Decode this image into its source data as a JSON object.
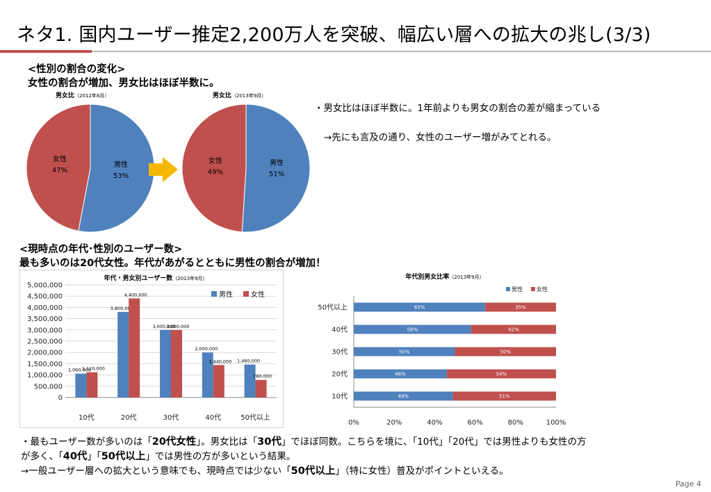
{
  "page": {
    "title": "ネタ1. 国内ユーザー推定2,200万人を突破、幅広い層への拡大の兆し(3/3)",
    "page_number": "Page 4",
    "colors": {
      "male": "#4f81bd",
      "female": "#c0504d",
      "arrow": "#f5b800",
      "title_rule": "#c0504d"
    }
  },
  "section1": {
    "heading": "<性別の割合の変化>",
    "subheading": "女性の割合が増加、男女比はほぼ半数に。",
    "bullet1": "・男女比はほぼ半数に。1年前よりも男女の割合の差が縮まっている",
    "bullet2": "→先にも言及の通り、女性のユーザー増がみてとれる。",
    "arrow_icon": "right-arrow-icon"
  },
  "section2": {
    "heading": "<現時点の年代･性別のユーザー数>",
    "subheading": "最も多いのは20代女性。年代があがるとともに男性の割合が増加！"
  },
  "footer": {
    "line1_a": "・最もユーザー数が多いのは「",
    "line1_b": "20代女性",
    "line1_c": "」。男女比は「",
    "line1_d": "30代",
    "line1_e": "」でほぼ同数。こちらを境に、「10代」「20代」では男性よりも女性の方",
    "line2_a": "が多く、「",
    "line2_b": "40代",
    "line2_c": "」「",
    "line2_d": "50代以上",
    "line2_e": "」では男性の方が多いという結果。",
    "line3_a": "→一般ユーザー層への拡大という意味でも、現時点では少ない「",
    "line3_b": "50代以上",
    "line3_c": "」（特に女性）普及がポイントといえる。"
  },
  "chart_data": [
    {
      "type": "pie",
      "title": "男女比",
      "subtitle": "（2012年8月）",
      "slices": [
        {
          "name": "男性",
          "value": 53,
          "label": "53%",
          "color": "#4f81bd"
        },
        {
          "name": "女性",
          "value": 47,
          "label": "47%",
          "color": "#c0504d"
        }
      ]
    },
    {
      "type": "pie",
      "title": "男女比",
      "subtitle": "（2013年9月）",
      "slices": [
        {
          "name": "男性",
          "value": 51,
          "label": "51%",
          "color": "#4f81bd"
        },
        {
          "name": "女性",
          "value": 49,
          "label": "49%",
          "color": "#c0504d"
        }
      ]
    },
    {
      "type": "bar",
      "title": "年代・男女別ユーザー数",
      "subtitle": "（2013年9月）",
      "categories": [
        "10代",
        "20代",
        "30代",
        "40代",
        "50代以上"
      ],
      "series": [
        {
          "name": "男性",
          "color": "#4f81bd",
          "values": [
            1060000,
            3800000,
            3000000,
            2000000,
            1460000
          ],
          "labels": [
            "1,060,000",
            "3,800,000",
            "3,000,000",
            "2,000,000",
            "1,460,000"
          ]
        },
        {
          "name": "女性",
          "color": "#c0504d",
          "values": [
            1120000,
            4400000,
            3000000,
            1440000,
            780000
          ],
          "labels": [
            "1,120,000",
            "4,400,000",
            "3,000,000",
            "1,440,000",
            "780,000"
          ]
        }
      ],
      "ylim": [
        0,
        5000000
      ],
      "yticks": [
        "0",
        "500,000",
        "1,000,000",
        "1,500,000",
        "2,000,000",
        "2,500,000",
        "3,000,000",
        "3,500,000",
        "4,000,000",
        "4,500,000",
        "5,000,000"
      ],
      "grid": true,
      "legend": "top-right"
    },
    {
      "type": "bar",
      "orientation": "horizontal",
      "stacked": true,
      "title": "年代別男女比率",
      "subtitle": "（2013年9月）",
      "categories": [
        "50代以上",
        "40代",
        "30代",
        "20代",
        "10代"
      ],
      "series": [
        {
          "name": "男性",
          "color": "#4f81bd",
          "values": [
            65,
            58,
            50,
            46,
            49
          ],
          "labels": [
            "65%",
            "58%",
            "50%",
            "46%",
            "49%"
          ]
        },
        {
          "name": "女性",
          "color": "#c0504d",
          "values": [
            35,
            42,
            50,
            54,
            51
          ],
          "labels": [
            "35%",
            "42%",
            "50%",
            "54%",
            "51%"
          ]
        }
      ],
      "xlim": [
        0,
        100
      ],
      "xticks": [
        "0%",
        "20%",
        "40%",
        "60%",
        "80%",
        "100%"
      ],
      "grid": false,
      "legend": "top-right"
    }
  ]
}
